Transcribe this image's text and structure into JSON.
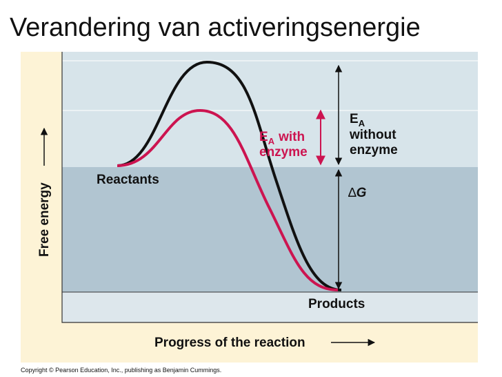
{
  "header": {
    "title": "Verandering van activeringsenergie"
  },
  "figure": {
    "y_axis_label": "Free energy",
    "x_axis_label": "Progress of the reaction",
    "reactants": "Reactants",
    "products": "Products",
    "ea_with_enzyme": {
      "symbol": "E",
      "subscript": "A",
      "line1": "with",
      "line2": "enzyme"
    },
    "ea_without_enzyme": {
      "symbol": "E",
      "subscript": "A",
      "line1": "without",
      "line2": "enzyme"
    },
    "delta_g": {
      "symbol": "∆",
      "letter": "G"
    }
  },
  "footer": {
    "copyright": "Copyright © Pearson Education, Inc., publishing as Benjamin Cummings."
  }
}
